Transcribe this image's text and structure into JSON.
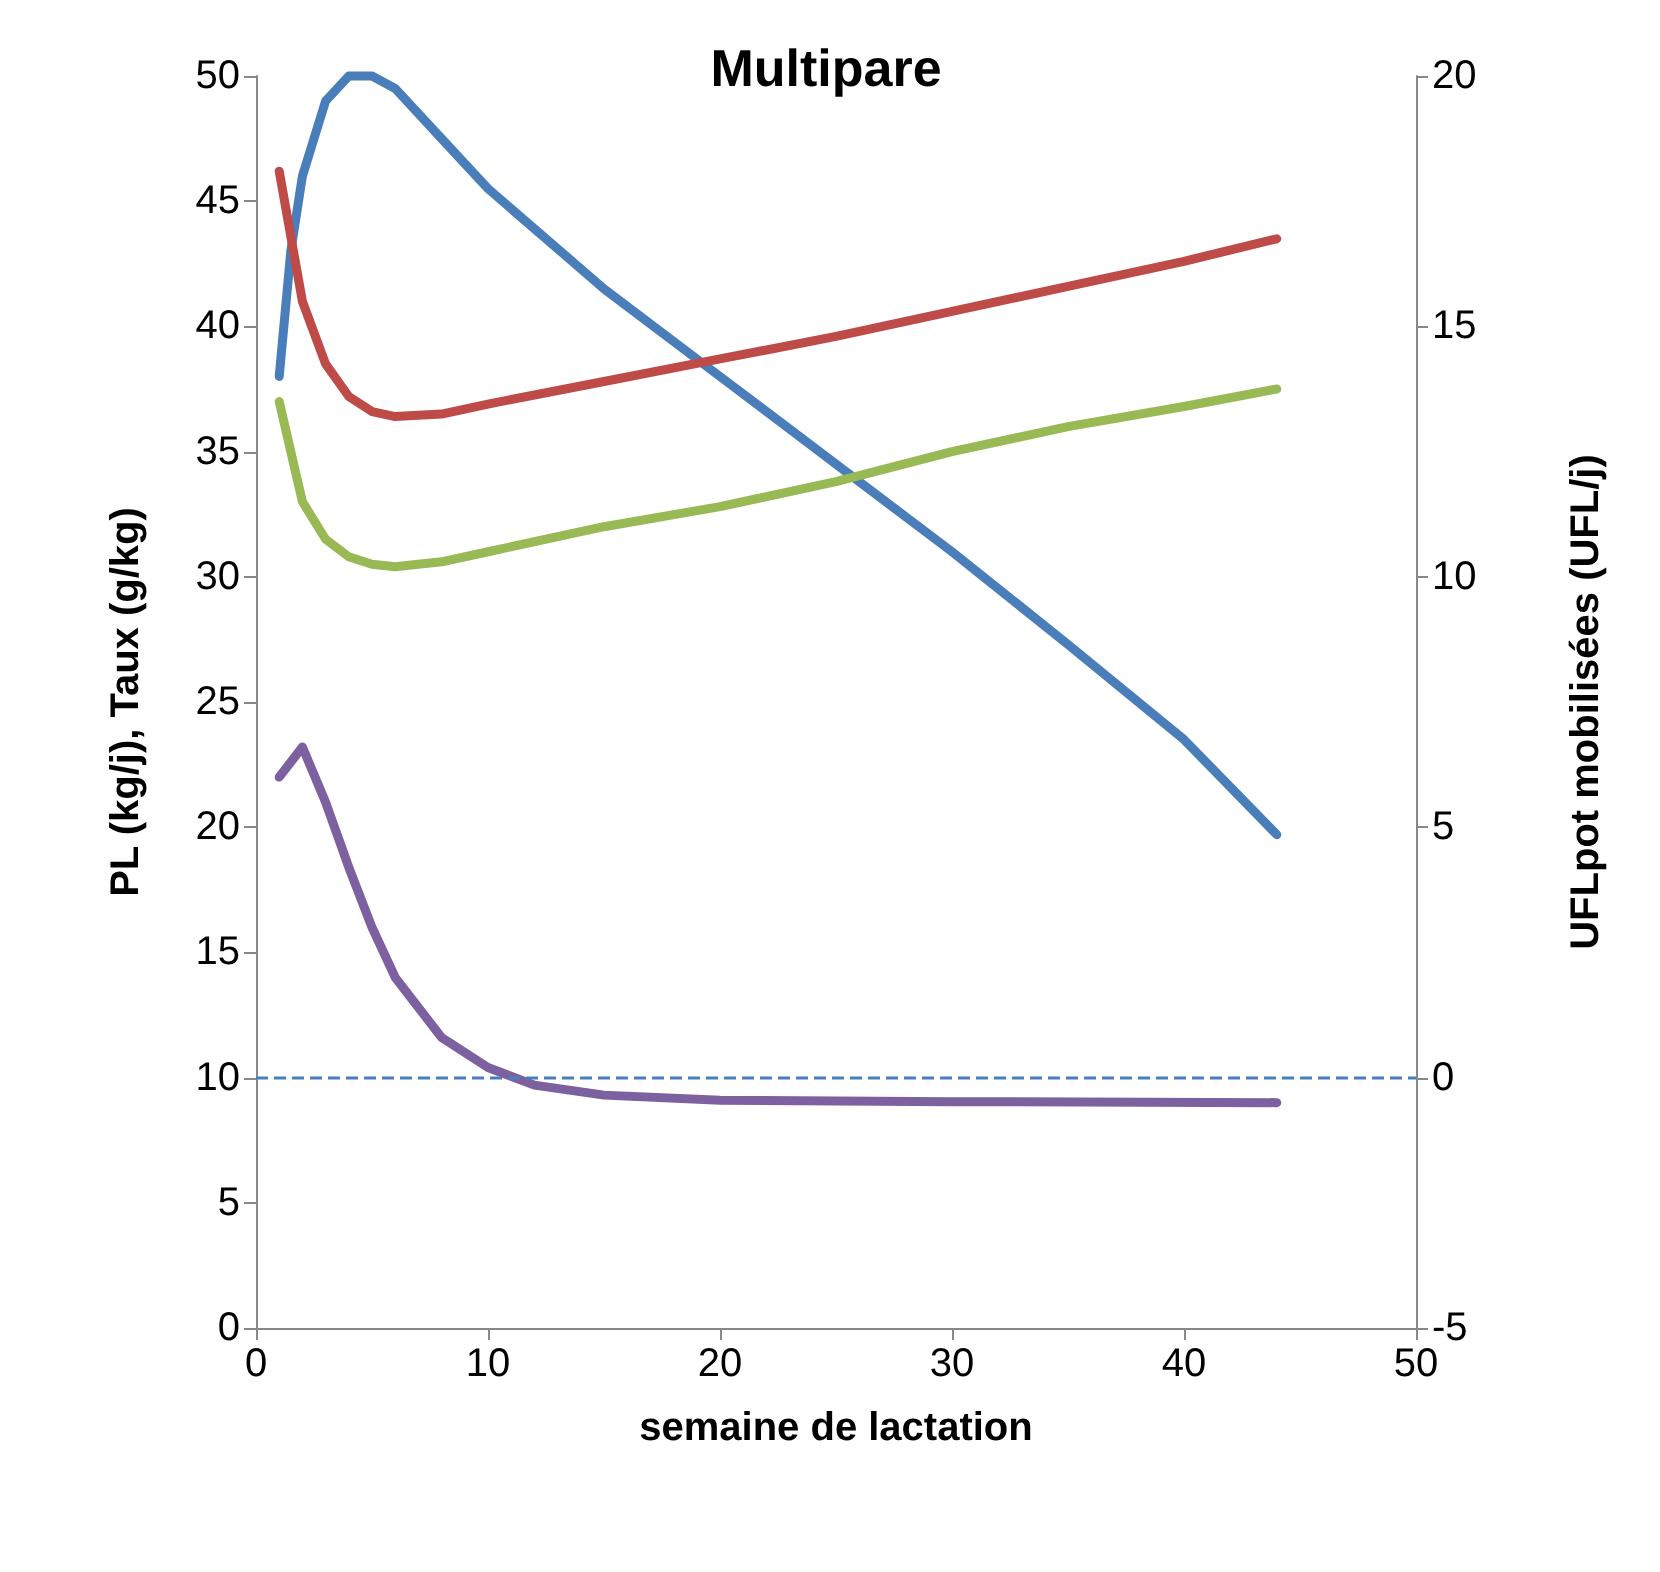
{
  "chart_data": {
    "type": "line",
    "title": "Multipare",
    "xlabel": "semaine de lactation",
    "ylabel": "PL (kg/j), Taux (g/kg)",
    "y2label": "UFLpot mobilisées (UFL/j)",
    "xlim": [
      0,
      50
    ],
    "xticks": [
      0,
      10,
      20,
      30,
      40,
      50
    ],
    "ylim": [
      0,
      50
    ],
    "yticks": [
      0,
      5,
      10,
      15,
      20,
      25,
      30,
      35,
      40,
      45,
      50
    ],
    "y2lim": [
      -5,
      20
    ],
    "y2ticks": [
      -5,
      0,
      5,
      10,
      15,
      20
    ],
    "grid": false,
    "marker": "none",
    "line_style": "solid",
    "series": [
      {
        "color": "#4a7ebb",
        "x": [
          1,
          1.5,
          2,
          3,
          4,
          5,
          6,
          8,
          10,
          15,
          20,
          25,
          30,
          35,
          40,
          44
        ],
        "values": [
          38,
          43,
          46,
          49,
          50,
          50,
          49.5,
          47.5,
          45.5,
          41.5,
          38,
          34.5,
          31,
          27.3,
          23.5,
          19.7
        ]
      },
      {
        "color": "#be4b48",
        "x": [
          1,
          2,
          3,
          4,
          5,
          6,
          8,
          10,
          15,
          20,
          25,
          30,
          35,
          40,
          44
        ],
        "values": [
          46.2,
          41,
          38.5,
          37.2,
          36.6,
          36.4,
          36.5,
          36.9,
          37.8,
          38.7,
          39.6,
          40.6,
          41.6,
          42.6,
          43.5
        ]
      },
      {
        "color": "#98b954",
        "x": [
          1,
          2,
          3,
          4,
          5,
          6,
          8,
          10,
          15,
          20,
          25,
          30,
          35,
          40,
          44
        ],
        "values": [
          37,
          33,
          31.5,
          30.8,
          30.5,
          30.4,
          30.6,
          31,
          32,
          32.8,
          33.8,
          35,
          36,
          36.8,
          37.5
        ]
      },
      {
        "color": "#7d60a0",
        "axis": "y2",
        "x": [
          1,
          2,
          3,
          4,
          5,
          6,
          8,
          10,
          12,
          15,
          20,
          30,
          44
        ],
        "values": [
          6,
          6.6,
          5.5,
          4.2,
          3,
          2,
          0.8,
          0.2,
          -0.15,
          -0.35,
          -0.45,
          -0.48,
          -0.5
        ]
      }
    ],
    "ref_lines": [
      {
        "axis": "y2",
        "value": 0,
        "color": "#4a7ebb",
        "line_style": "dashed"
      }
    ]
  }
}
